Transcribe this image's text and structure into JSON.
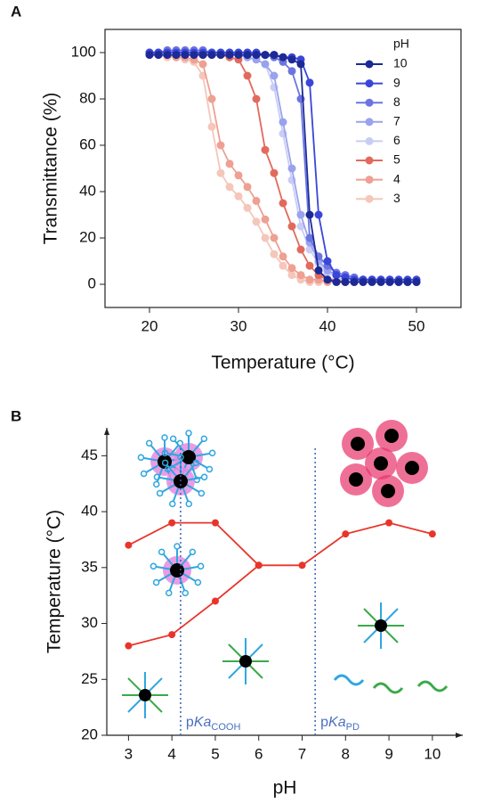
{
  "chart_data": [
    {
      "type": "line",
      "panel_label": "A",
      "x_label": "Temperature (°C)",
      "y_label": "Transmittance (%)",
      "xlim": [
        15,
        55
      ],
      "ylim": [
        -10,
        110
      ],
      "xticks": [
        20,
        30,
        40,
        50
      ],
      "yticks": [
        0,
        20,
        40,
        60,
        80,
        100
      ],
      "legend_title": "pH",
      "legend": "upper right",
      "x": [
        20,
        21,
        22,
        23,
        24,
        25,
        26,
        27,
        28,
        29,
        30,
        31,
        32,
        33,
        34,
        35,
        36,
        37,
        38,
        39,
        40,
        41,
        42,
        43,
        44,
        45,
        46,
        47,
        48,
        49,
        50
      ],
      "series": [
        {
          "name": "10",
          "color": "#1c2a96",
          "values": [
            99,
            99,
            99,
            99,
            99,
            99,
            99,
            99,
            99,
            99,
            99,
            99,
            99,
            99,
            99,
            98,
            97,
            95,
            30,
            6,
            2,
            1,
            1,
            1,
            1,
            1,
            1,
            1,
            1,
            1,
            1
          ]
        },
        {
          "name": "9",
          "color": "#3a46d8",
          "values": [
            100,
            100,
            100,
            100,
            100,
            100,
            100,
            100,
            100,
            100,
            100,
            100,
            100,
            99,
            99,
            98,
            98,
            97,
            87,
            30,
            10,
            4,
            3,
            2,
            2,
            2,
            2,
            2,
            2,
            2,
            2
          ]
        },
        {
          "name": "8",
          "color": "#6c74e2",
          "values": [
            100,
            100,
            101,
            101,
            101,
            101,
            101,
            100,
            100,
            100,
            100,
            100,
            99,
            99,
            98,
            96,
            92,
            80,
            20,
            12,
            8,
            5,
            4,
            3,
            2,
            2,
            2,
            2,
            1,
            1,
            1
          ]
        },
        {
          "name": "7",
          "color": "#9aa2ee",
          "values": [
            100,
            100,
            100,
            101,
            101,
            101,
            101,
            100,
            100,
            100,
            99,
            98,
            97,
            95,
            90,
            70,
            50,
            30,
            18,
            10,
            6,
            4,
            3,
            2,
            2,
            2,
            1,
            1,
            1,
            1,
            1
          ]
        },
        {
          "name": "6",
          "color": "#c9cdf5",
          "values": [
            100,
            100,
            100,
            100,
            100,
            100,
            100,
            100,
            100,
            99,
            99,
            98,
            97,
            95,
            85,
            65,
            45,
            25,
            15,
            9,
            5,
            3,
            2,
            2,
            1,
            1,
            1,
            1,
            1,
            1,
            1
          ]
        },
        {
          "name": "5",
          "color": "#e26a5d",
          "values": [
            100,
            100,
            100,
            100,
            100,
            100,
            99,
            99,
            99,
            98,
            97,
            90,
            80,
            58,
            48,
            35,
            25,
            15,
            8,
            4,
            2,
            2,
            1,
            1,
            1,
            1,
            1,
            1,
            1,
            1,
            1
          ]
        },
        {
          "name": "4",
          "color": "#eea092",
          "values": [
            100,
            99,
            99,
            98,
            98,
            97,
            95,
            80,
            60,
            52,
            47,
            42,
            36,
            28,
            20,
            12,
            7,
            4,
            2,
            2,
            1,
            1,
            1,
            1,
            1,
            1,
            1,
            1,
            1,
            1,
            1
          ]
        },
        {
          "name": "3",
          "color": "#f5c6ba",
          "values": [
            100,
            99,
            98,
            98,
            97,
            96,
            90,
            68,
            48,
            42,
            38,
            33,
            27,
            20,
            13,
            8,
            4,
            2,
            1,
            1,
            1,
            1,
            1,
            1,
            1,
            1,
            1,
            1,
            1,
            1,
            1
          ]
        }
      ]
    },
    {
      "type": "line",
      "panel_label": "B",
      "x_label": "pH",
      "y_label": "Temperature (°C)",
      "xlim": [
        2.5,
        10.7
      ],
      "ylim": [
        20,
        47.5
      ],
      "xticks": [
        3,
        4,
        5,
        6,
        7,
        8,
        9,
        10
      ],
      "yticks": [
        20,
        25,
        30,
        35,
        40,
        45
      ],
      "series": [
        {
          "color": "#e8352b",
          "x": [
            3,
            4,
            5,
            6
          ],
          "values": [
            37,
            39,
            39,
            35.2
          ]
        },
        {
          "color": "#e8352b",
          "x": [
            3,
            4,
            5,
            6,
            7,
            8,
            9,
            10
          ],
          "values": [
            28,
            29,
            32,
            35.2,
            35.2,
            38,
            39,
            38
          ]
        }
      ],
      "vlines": [
        {
          "x": 4.2,
          "prefix": "p",
          "italic": "Ka",
          "sub": "COOH"
        },
        {
          "x": 7.3,
          "prefix": "p",
          "italic": "Ka",
          "sub": "PD"
        }
      ]
    }
  ]
}
